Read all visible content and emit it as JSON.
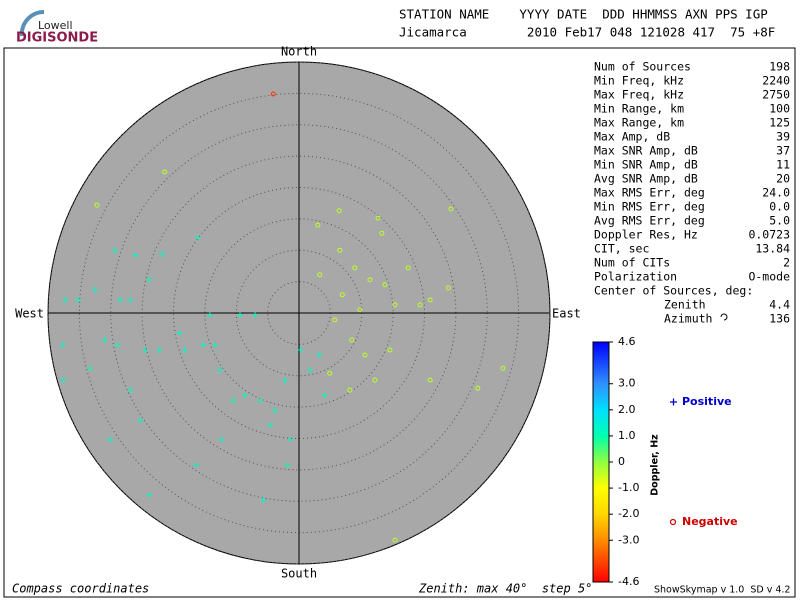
{
  "logo": {
    "top": "Lowell",
    "bottom": "DIGISONDE"
  },
  "header": {
    "labels": "STATION NAME    YYYY DATE  DDD HHMMSS AXN PPS IGP",
    "values": "Jicamarca        2010 Feb17 048 121028 417  75 +8F"
  },
  "parameters": {
    "rows": [
      [
        "Num of Sources",
        198
      ],
      [
        "Min Freq, kHz",
        2240
      ],
      [
        "Max Freq, kHz",
        2750
      ],
      [
        "Min Range, km",
        100
      ],
      [
        "Max Range, km",
        125
      ],
      [
        "Max Amp, dB",
        39
      ],
      [
        "Max SNR Amp, dB",
        37
      ],
      [
        "Min SNR Amp, dB",
        11
      ],
      [
        "Avg SNR Amp, dB",
        20
      ],
      [
        "Max RMS Err, deg",
        "24.0"
      ],
      [
        "Min RMS Err, deg",
        "0.0"
      ],
      [
        "Avg RMS Err, deg",
        "5.0"
      ],
      [
        "Doppler Res, Hz",
        0.0723
      ],
      [
        "CIT, sec",
        13.84
      ],
      [
        "Num of CITs",
        2
      ],
      [
        "Polarization",
        "O-mode"
      ]
    ],
    "center_heading": "Center of Sources, deg:",
    "center_rows": [
      [
        "Zenith",
        4.4
      ],
      [
        "Azimuth",
        136
      ]
    ]
  },
  "footer": {
    "left": "Compass coordinates",
    "middle": "Zenith: max 40°  step 5°",
    "right": "ShowSkymap v 1.0  SD v 4.2"
  },
  "chart_data": {
    "type": "skymap",
    "directions": {
      "north": "North",
      "south": "South",
      "east": "East",
      "west": "West"
    },
    "rlim": [
      0,
      40
    ],
    "rticks": [
      5,
      10,
      15,
      20,
      25,
      30,
      35,
      40
    ],
    "grid": true,
    "series": [
      {
        "name": "Positive",
        "color": "#0000cc",
        "marker": "cross",
        "x": [
          -37.3,
          -35.2,
          -37.6,
          -37.5,
          -33.3,
          -30.9,
          -28.5,
          -26.9,
          -28.9,
          -24.5,
          -22.2,
          -23.8,
          -26.1,
          -29.3,
          -32.5,
          -26.9,
          -25.3,
          -30.1,
          -23.8,
          -18.2,
          -14.2,
          -13.4,
          -12.6,
          -9.4,
          -7.0,
          -8.6,
          -6.2,
          -3.8,
          -4.6,
          -2.2,
          -1.4,
          -1.8,
          -12.3,
          -16.4,
          -5.7,
          -16.1,
          -21.8,
          -15.3,
          3.3,
          1.8,
          4.1,
          -10.5,
          -19.0,
          0.2
        ],
        "y": [
          2.1,
          2.1,
          -5.1,
          -10.7,
          -8.8,
          -4.3,
          2.1,
          2.1,
          -5.1,
          -5.9,
          -5.9,
          5.3,
          9.2,
          10.0,
          3.7,
          -12.3,
          -17.1,
          -20.2,
          -29.0,
          -5.9,
          -0.3,
          -5.1,
          -9.1,
          -0.3,
          -0.3,
          -13.1,
          -13.9,
          -15.5,
          -17.9,
          -10.7,
          -20.2,
          -24.2,
          -20.2,
          -24.2,
          -29.8,
          12.0,
          9.4,
          -5.1,
          -6.7,
          -9.1,
          -13.1,
          -13.9,
          -3.2,
          -5.9
        ],
        "doppler": [
          1.2,
          1.2,
          1.2,
          1.2,
          1.2,
          1.2,
          1.2,
          1.2,
          1.2,
          1.2,
          1.2,
          1.2,
          1.2,
          1.2,
          1.2,
          1.2,
          1.2,
          1.2,
          1.2,
          1.2,
          1.2,
          1.2,
          1.2,
          1.2,
          1.2,
          1.2,
          1.2,
          1.2,
          1.2,
          1.2,
          1.2,
          1.2,
          1.2,
          1.2,
          1.2,
          1.2,
          1.2,
          1.2,
          1.2,
          1.2,
          1.2,
          1.2,
          1.2,
          1.2
        ]
      },
      {
        "name": "Negative",
        "color": "#cc0000",
        "marker": "circle",
        "x": [
          3.0,
          6.4,
          12.6,
          24.2,
          6.5,
          8.9,
          11.3,
          13.7,
          17.4,
          19.3,
          23.8,
          20.9,
          9.7,
          6.9,
          5.7,
          3.3,
          8.4,
          10.5,
          12.1,
          14.5,
          20.9,
          28.5,
          32.5,
          15.3,
          4.9,
          8.1,
          15.3,
          -21.4,
          -32.2,
          13.2,
          -4.1
        ],
        "y": [
          14.0,
          16.3,
          15.1,
          16.6,
          10.0,
          7.2,
          5.3,
          4.5,
          7.2,
          1.3,
          4.0,
          2.1,
          0.5,
          2.9,
          -1.1,
          6.1,
          -4.3,
          -6.7,
          -10.7,
          -5.9,
          -10.7,
          -12.0,
          -8.8,
          1.3,
          -9.6,
          -12.3,
          -36.2,
          22.5,
          17.2,
          12.7,
          34.9
        ],
        "doppler": [
          -0.4,
          -0.4,
          -0.4,
          -0.4,
          -0.4,
          -0.4,
          -0.4,
          -0.4,
          -0.4,
          -0.4,
          -0.4,
          -0.4,
          -0.4,
          -0.4,
          -0.4,
          -0.4,
          -0.4,
          -0.4,
          -0.4,
          -0.4,
          -0.4,
          -0.4,
          -0.4,
          -0.4,
          -0.4,
          -0.4,
          -0.4,
          -0.4,
          -0.4,
          -0.4,
          -4.0
        ]
      }
    ],
    "colorbar": {
      "label": "Doppler, Hz",
      "lim": [
        -4.6,
        4.6
      ],
      "ticks": [
        4.6,
        {
          "value": 3,
          "label": "3.0"
        },
        {
          "value": 2,
          "label": "2.0"
        },
        {
          "value": 1,
          "label": "1.0"
        },
        0,
        {
          "value": -1,
          "label": "-1.0"
        },
        {
          "value": -2,
          "label": "-2.0"
        },
        {
          "value": -3,
          "label": "-3.0"
        },
        -4.6
      ],
      "stops": [
        {
          "value": -4.6,
          "color": "#ff0000"
        },
        {
          "value": -3,
          "color": "#ff8c00"
        },
        {
          "value": -2,
          "color": "#ffd700"
        },
        {
          "value": -1,
          "color": "#ffff00"
        },
        {
          "value": 0,
          "color": "#90ff40"
        },
        {
          "value": 1,
          "color": "#00ffb0"
        },
        {
          "value": 2,
          "color": "#00e0ff"
        },
        {
          "value": 3,
          "color": "#3090ff"
        },
        {
          "value": 4.6,
          "color": "#0000ff"
        }
      ]
    }
  }
}
